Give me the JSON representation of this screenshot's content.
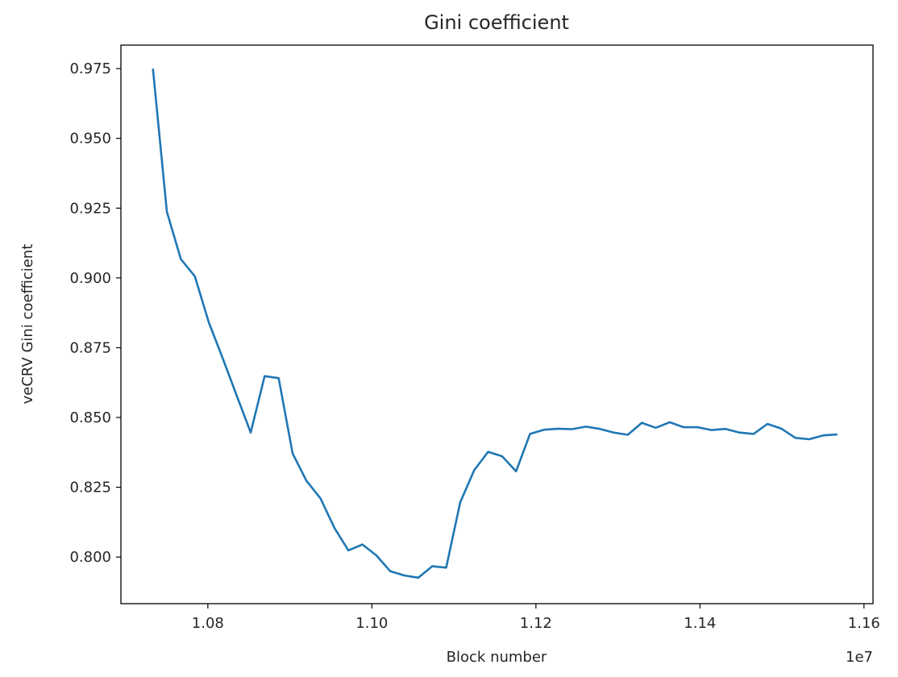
{
  "chart_data": {
    "type": "line",
    "title": "Gini coefficient",
    "xlabel": "Block number",
    "ylabel": "veCRV Gini coefficient",
    "x_offset_label": "1e7",
    "xlim": [
      10694000,
      11611000
    ],
    "ylim": [
      0.7833,
      0.9834
    ],
    "x_ticks": [
      10800000,
      11000000,
      11200000,
      11400000,
      11600000
    ],
    "x_tick_labels": [
      "1.08",
      "1.10",
      "1.12",
      "1.14",
      "1.16"
    ],
    "y_ticks": [
      0.8,
      0.825,
      0.85,
      0.875,
      0.9,
      0.925,
      0.95,
      0.975
    ],
    "y_tick_labels": [
      "0.800",
      "0.825",
      "0.850",
      "0.875",
      "0.900",
      "0.925",
      "0.950",
      "0.975"
    ],
    "grid": false,
    "line_color": "#1f77b4",
    "x": [
      10733000,
      10750000,
      10767100,
      10784100,
      10801100,
      10818200,
      10835200,
      10852200,
      10869200,
      10886300,
      10903300,
      10920300,
      10937400,
      10954400,
      10971400,
      10988500,
      11005500,
      11022500,
      11039500,
      11056600,
      11073600,
      11090600,
      11107700,
      11124700,
      11141700,
      11158800,
      11175800,
      11192800,
      11209800,
      11226900,
      11243900,
      11260900,
      11278000,
      11295000,
      11312000,
      11329100,
      11346100,
      11363100,
      11380100,
      11397200,
      11414200,
      11431200,
      11448300,
      11465300,
      11482300,
      11499400,
      11516400,
      11533400,
      11550400,
      11567500
    ],
    "y": [
      0.975,
      0.9237,
      0.9067,
      0.9006,
      0.8841,
      0.8711,
      0.8578,
      0.8446,
      0.8648,
      0.8641,
      0.8371,
      0.8273,
      0.821,
      0.8104,
      0.8024,
      0.8045,
      0.8006,
      0.7949,
      0.7934,
      0.7926,
      0.7967,
      0.7962,
      0.8196,
      0.8311,
      0.8377,
      0.8361,
      0.8307,
      0.8441,
      0.8456,
      0.846,
      0.8458,
      0.8467,
      0.8459,
      0.8446,
      0.8438,
      0.8481,
      0.8463,
      0.8483,
      0.8465,
      0.8465,
      0.8455,
      0.8459,
      0.8446,
      0.8441,
      0.8477,
      0.846,
      0.8427,
      0.8422,
      0.8436,
      0.8439
    ]
  }
}
